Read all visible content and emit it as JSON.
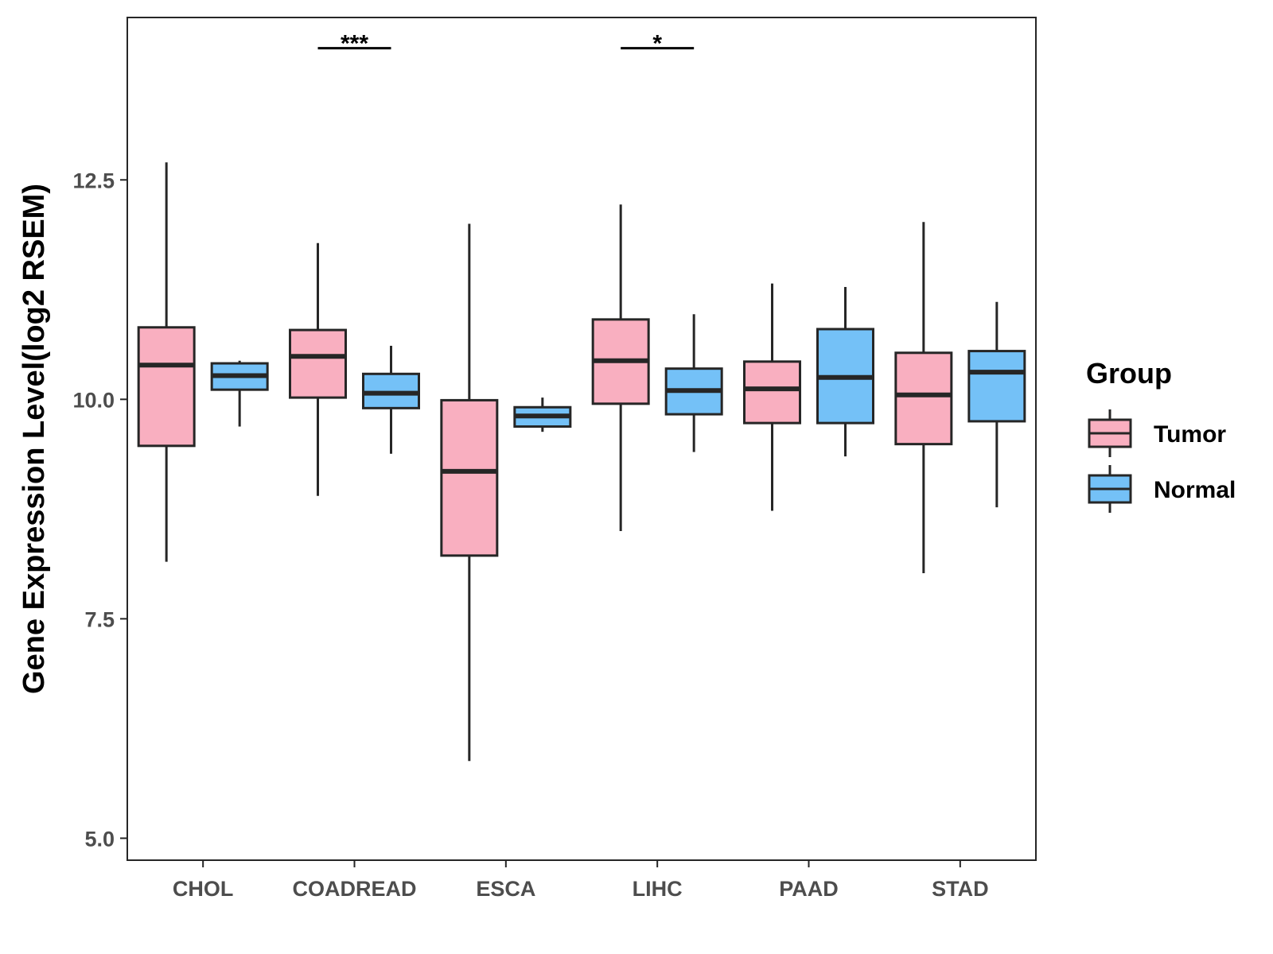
{
  "chart_data": {
    "type": "boxplot",
    "title": "",
    "xlabel": "",
    "ylabel": "Gene Expression Level(log2 RSEM)",
    "ylim": [
      4.75,
      14.35
    ],
    "yticks": [
      {
        "value": 5.0,
        "label": "5.0"
      },
      {
        "value": 7.5,
        "label": "7.5"
      },
      {
        "value": 10.0,
        "label": "10.0"
      },
      {
        "value": 12.5,
        "label": "12.5"
      }
    ],
    "categories": [
      "CHOL",
      "COADREAD",
      "ESCA",
      "LIHC",
      "PAAD",
      "STAD"
    ],
    "grid": false,
    "legend": {
      "title": "Group",
      "position": "right",
      "items": [
        {
          "name": "Tumor",
          "color": "#F9AFC0"
        },
        {
          "name": "Normal",
          "color": "#74C1F7"
        }
      ]
    },
    "series": [
      {
        "name": "Tumor",
        "color": "#F9AFC0",
        "boxes": [
          {
            "min": 8.15,
            "q1": 9.47,
            "median": 10.39,
            "q3": 10.82,
            "max": 12.7
          },
          {
            "min": 8.9,
            "q1": 10.02,
            "median": 10.49,
            "q3": 10.79,
            "max": 11.78
          },
          {
            "min": 5.88,
            "q1": 8.22,
            "median": 9.18,
            "q3": 9.99,
            "max": 12.0
          },
          {
            "min": 8.5,
            "q1": 9.95,
            "median": 10.44,
            "q3": 10.91,
            "max": 12.22
          },
          {
            "min": 8.73,
            "q1": 9.73,
            "median": 10.12,
            "q3": 10.43,
            "max": 11.32
          },
          {
            "min": 8.02,
            "q1": 9.49,
            "median": 10.05,
            "q3": 10.53,
            "max": 12.02
          }
        ]
      },
      {
        "name": "Normal",
        "color": "#74C1F7",
        "boxes": [
          {
            "min": 9.69,
            "q1": 10.11,
            "median": 10.27,
            "q3": 10.41,
            "max": 10.44
          },
          {
            "min": 9.38,
            "q1": 9.9,
            "median": 10.07,
            "q3": 10.29,
            "max": 10.61
          },
          {
            "min": 9.63,
            "q1": 9.69,
            "median": 9.81,
            "q3": 9.91,
            "max": 10.02
          },
          {
            "min": 9.4,
            "q1": 9.83,
            "median": 10.1,
            "q3": 10.35,
            "max": 10.97
          },
          {
            "min": 9.35,
            "q1": 9.73,
            "median": 10.25,
            "q3": 10.8,
            "max": 11.28
          },
          {
            "min": 8.77,
            "q1": 9.75,
            "median": 10.31,
            "q3": 10.55,
            "max": 11.11
          }
        ]
      }
    ],
    "annotations": [
      {
        "category": "COADREAD",
        "label": "***",
        "y": 14.0
      },
      {
        "category": "LIHC",
        "label": "*",
        "y": 14.0
      }
    ]
  }
}
